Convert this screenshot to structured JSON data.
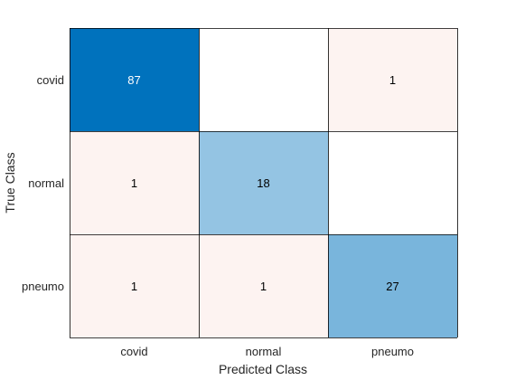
{
  "chart_data": {
    "type": "heatmap",
    "title": "",
    "xlabel": "Predicted Class",
    "ylabel": "True Class",
    "x_categories": [
      "covid",
      "normal",
      "pneumo"
    ],
    "y_categories": [
      "covid",
      "normal",
      "pneumo"
    ],
    "matrix": [
      [
        87,
        null,
        1
      ],
      [
        1,
        18,
        null
      ],
      [
        1,
        1,
        27
      ]
    ],
    "colors": {
      "diagonal_max": "#0072BD",
      "diagonal_min": "#FFFFFF",
      "off_diagonal": "#FDF3F1",
      "empty": "#FFFFFF",
      "grid": "#000000",
      "text_dark": "#000000",
      "text_light": "#FFFFFF"
    }
  }
}
